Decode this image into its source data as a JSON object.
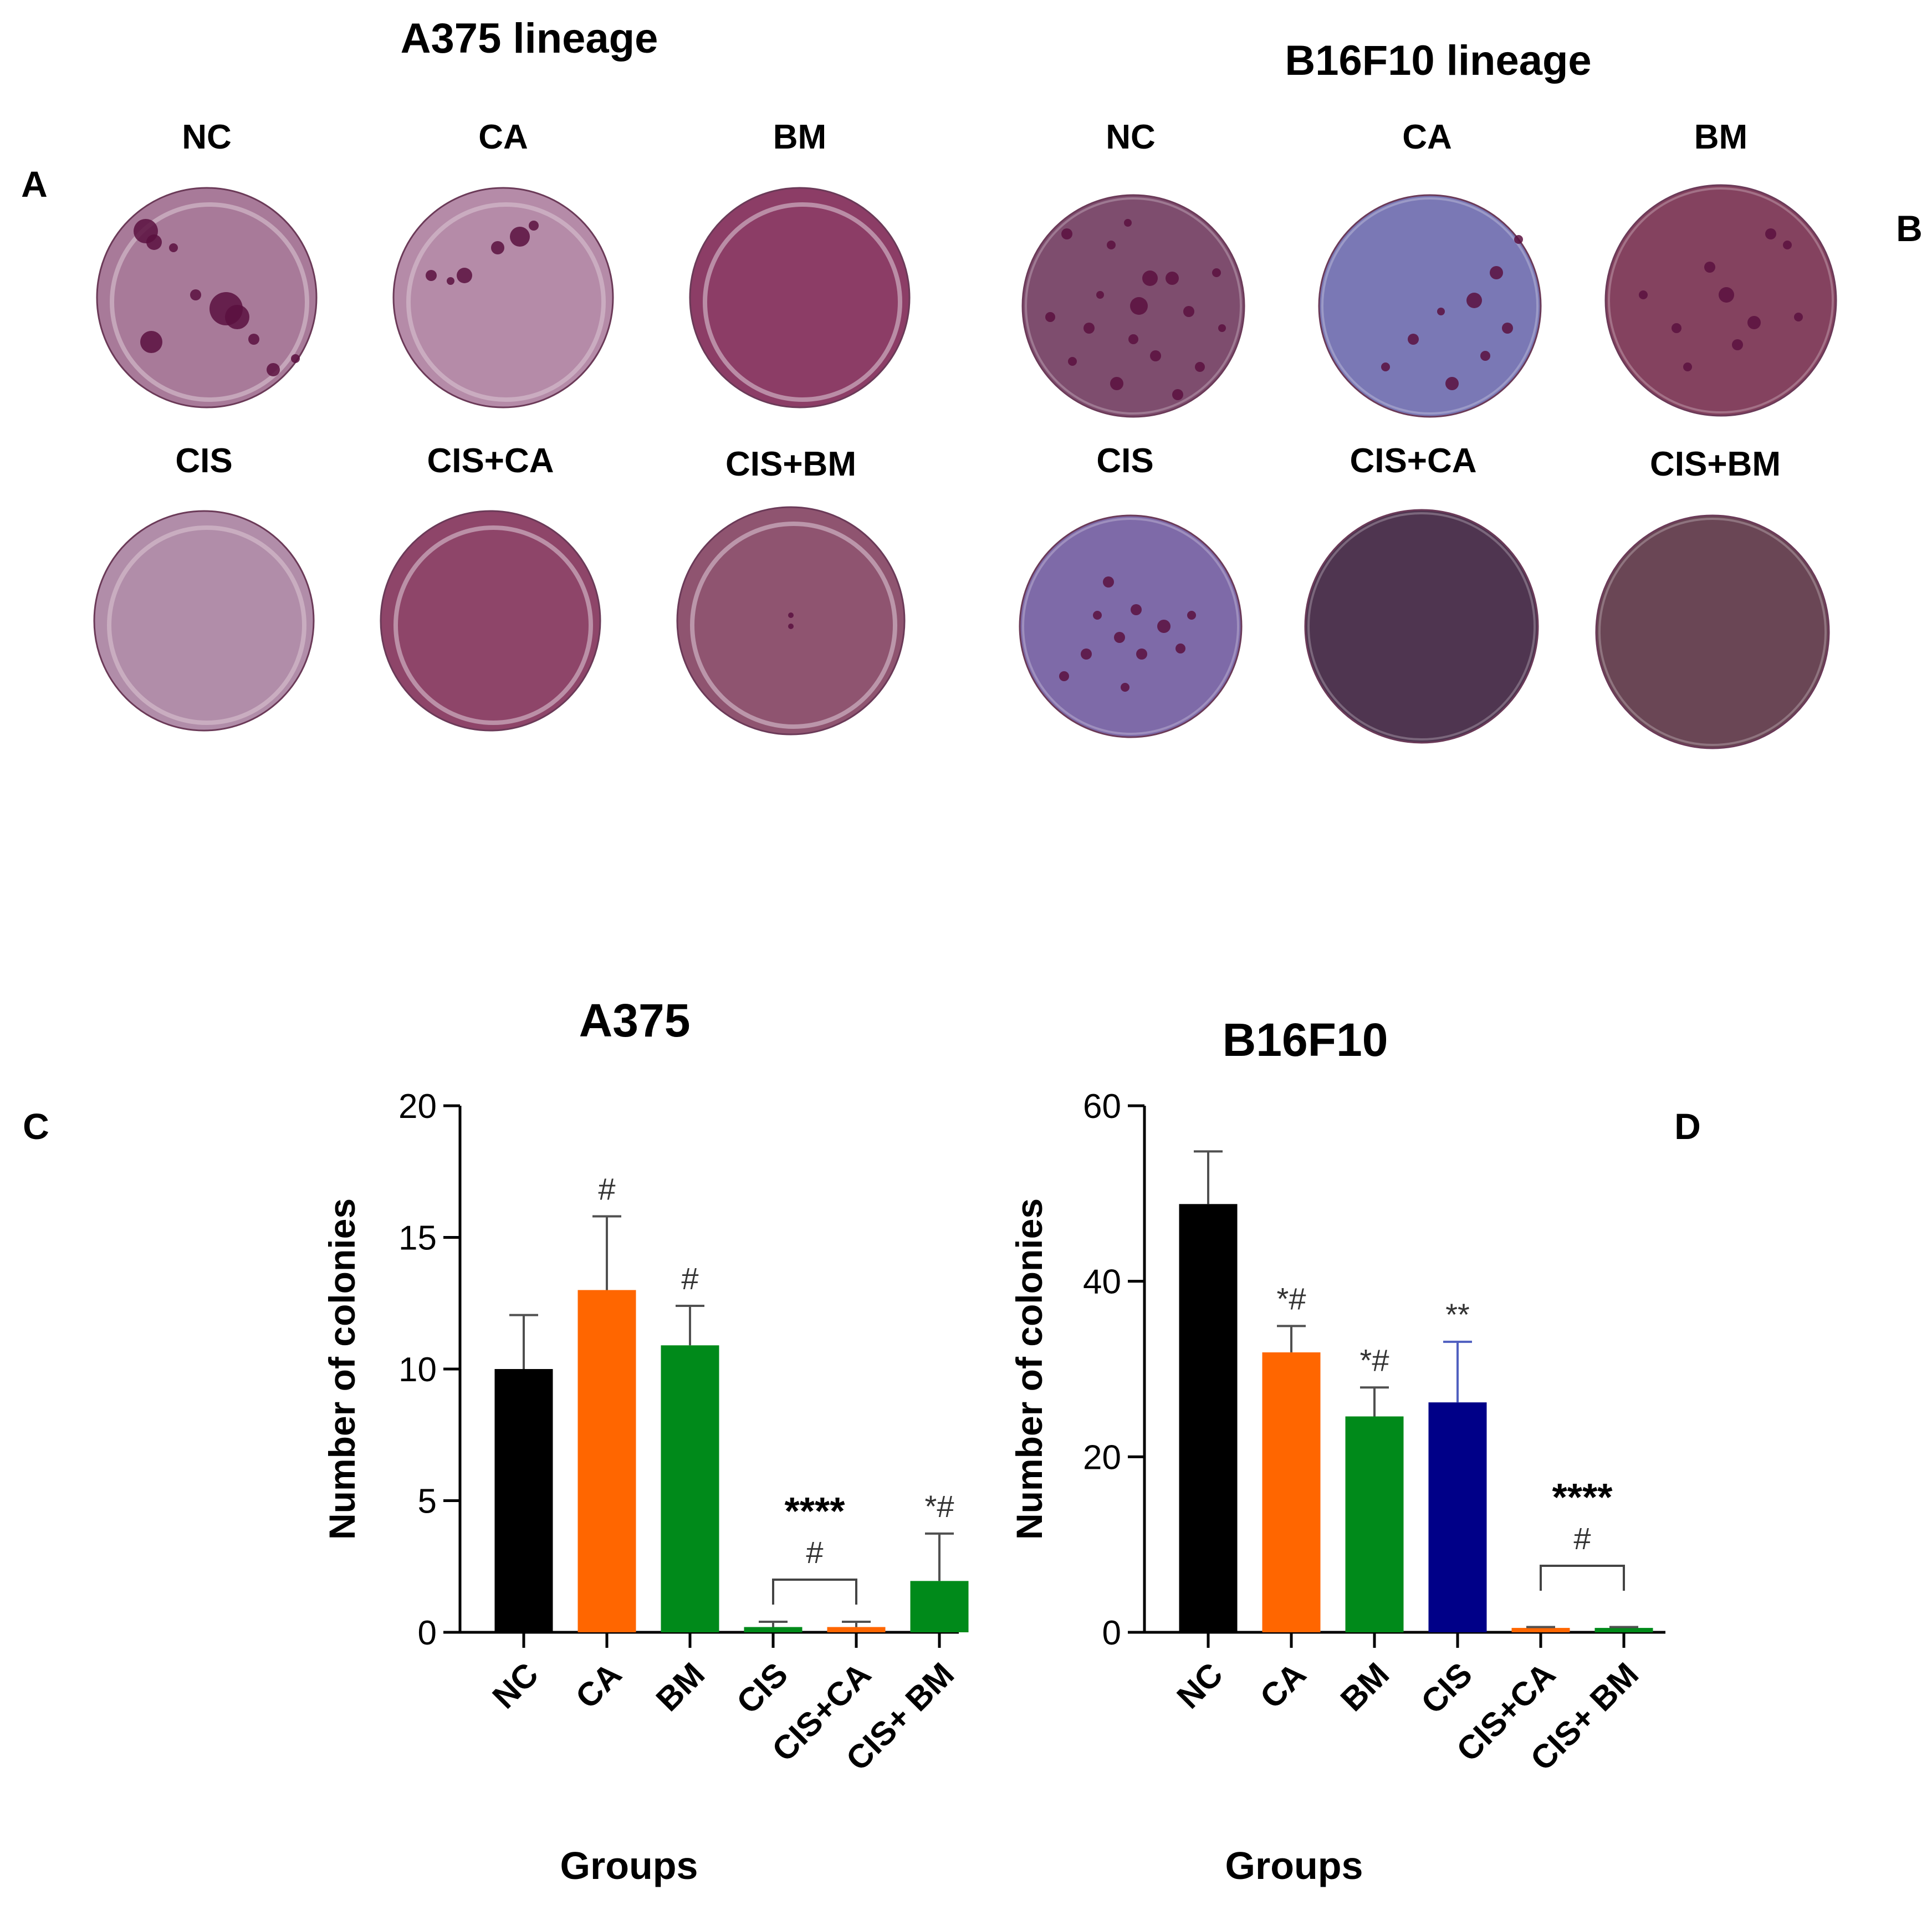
{
  "top": {
    "left_title": "A375 lineage",
    "right_title": "B16F10 lineage",
    "panel_a_letter": "A",
    "panel_b_letter": "B",
    "left_row1": [
      "NC",
      "CA",
      "BM"
    ],
    "left_row2": [
      "CIS",
      "CIS+CA",
      "CIS+BM"
    ],
    "right_row1": [
      "NC",
      "CA",
      "BM"
    ],
    "right_row2": [
      "CIS",
      "CIS+CA",
      "CIS+BM"
    ],
    "dish_colors": {
      "left": [
        "#a87a99",
        "#b58ba8",
        "#8c3d66",
        "#b18da9",
        "#8e4569",
        "#8f5470"
      ],
      "right": [
        "#7e4d6e",
        "#7a78b5",
        "#84425f",
        "#7e6aa8",
        "#4f3550",
        "#6a4655"
      ]
    },
    "colony_color": "#5a1040"
  },
  "chart_data": [
    {
      "type": "bar",
      "panel": "C",
      "title": "A375",
      "xlabel": "Groups",
      "ylabel": "Number of colonies",
      "categories": [
        "NC",
        "CA",
        "BM",
        "CIS",
        "CIS+CA",
        "CIS+ BM"
      ],
      "values": [
        10,
        13,
        10.9,
        0.2,
        0.2,
        1.95
      ],
      "errors": [
        2.05,
        2.8,
        1.5,
        0.2,
        0.2,
        1.8
      ],
      "colors": [
        "#000000",
        "#ff6600",
        "#008a1a",
        "#008a1a",
        "#ff6600",
        "#008a1a"
      ],
      "ylim": [
        0,
        20
      ],
      "yticks": [
        0,
        5,
        10,
        15,
        20
      ],
      "annotations": [
        "",
        "#",
        "#",
        "",
        "",
        "*#"
      ],
      "bracket": {
        "from": 3,
        "to": 4,
        "stars": "****",
        "hash": "#"
      }
    },
    {
      "type": "bar",
      "panel": "D",
      "title": "B16F10",
      "xlabel": "Groups",
      "ylabel": "Number of colonies",
      "categories": [
        "NC",
        "CA",
        "BM",
        "CIS",
        "CIS+CA",
        "CIS+ BM"
      ],
      "values": [
        48.8,
        31.9,
        24.6,
        26.2,
        0.5,
        0.5
      ],
      "errors": [
        6.0,
        3.0,
        3.3,
        6.9,
        0.1,
        0.1
      ],
      "colors": [
        "#000000",
        "#ff6600",
        "#008a1a",
        "#000088",
        "#ff6600",
        "#008a1a"
      ],
      "ylim": [
        0,
        60
      ],
      "yticks": [
        0,
        20,
        40,
        60
      ],
      "annotations": [
        "",
        "*#",
        "*#",
        "**",
        "",
        ""
      ],
      "bracket": {
        "from": 4,
        "to": 5,
        "stars": "****",
        "hash": "#"
      }
    }
  ]
}
